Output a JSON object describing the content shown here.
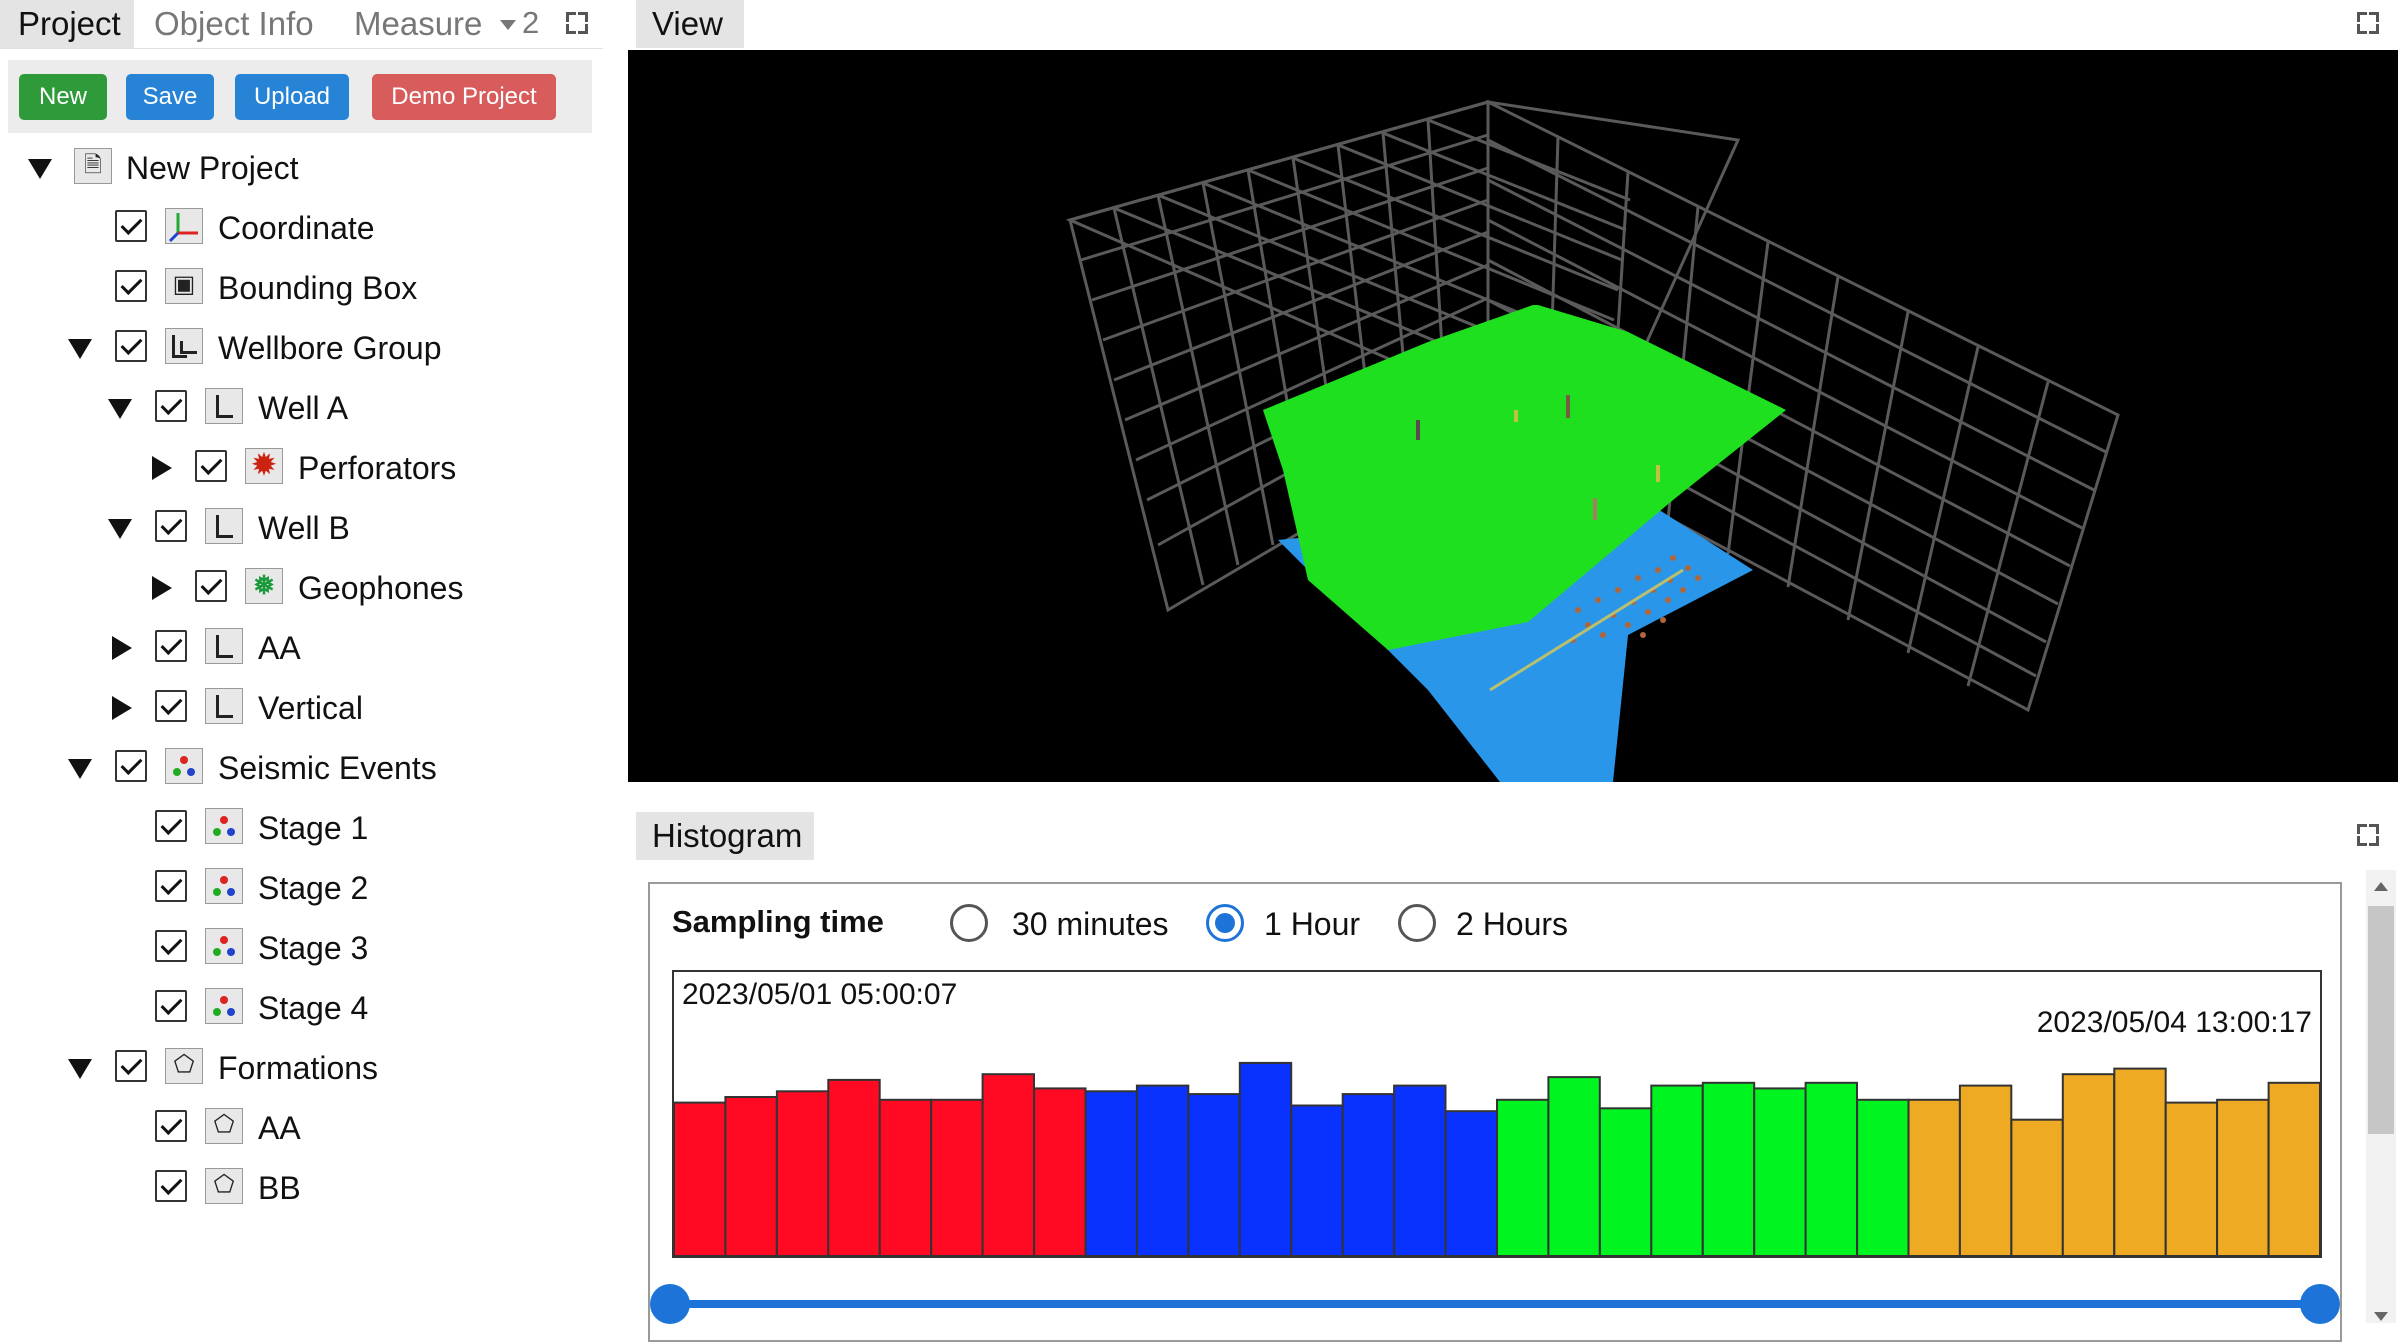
{
  "tabs": {
    "project": "Project",
    "object_info": "Object Info",
    "measure": "Measure",
    "overflow_count": "2"
  },
  "toolbar": {
    "new": "New",
    "save": "Save",
    "upload": "Upload",
    "demo": "Demo Project",
    "colors": {
      "new": "#2e9a3a",
      "save": "#2683d6",
      "upload": "#2683d6",
      "demo": "#d85c5c"
    }
  },
  "tree": {
    "root": "New Project",
    "coordinate": "Coordinate",
    "bounding_box": "Bounding Box",
    "wellbore_group": "Wellbore Group",
    "well_a": "Well A",
    "perforators": "Perforators",
    "well_b": "Well B",
    "geophones": "Geophones",
    "aa": "AA",
    "vertical": "Vertical",
    "seismic_events": "Seismic Events",
    "stage1": "Stage 1",
    "stage2": "Stage 2",
    "stage3": "Stage 3",
    "stage4": "Stage 4",
    "formations": "Formations",
    "form_aa": "AA",
    "form_bb": "BB"
  },
  "view": {
    "title": "View"
  },
  "histogram": {
    "title": "Histogram",
    "sampling_label": "Sampling time",
    "options": [
      "30 minutes",
      "1 Hour",
      "2 Hours"
    ],
    "selected": "1 Hour",
    "start_time": "2023/05/01 05:00:07",
    "end_time": "2023/05/04 13:00:17",
    "range": [
      0,
      1
    ]
  },
  "chart_data": {
    "type": "bar",
    "ylim": [
      0,
      100
    ],
    "series": [
      {
        "color": "#ff0a22",
        "values": [
          54,
          56,
          58,
          62,
          55,
          55,
          64,
          59
        ]
      },
      {
        "color": "#0a32ff",
        "values": [
          58,
          60,
          57,
          68,
          53,
          57,
          60,
          51
        ]
      },
      {
        "color": "#00f520",
        "values": [
          55,
          63,
          52,
          60,
          61,
          59,
          61,
          55
        ]
      },
      {
        "color": "#eeaa22",
        "values": [
          55,
          60,
          48,
          64,
          66,
          54,
          55,
          61
        ]
      }
    ]
  }
}
